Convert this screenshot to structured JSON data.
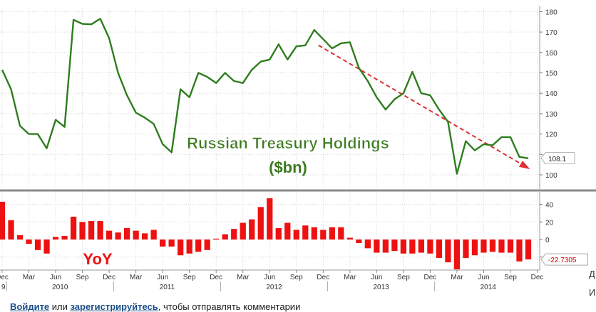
{
  "chart_data": [
    {
      "type": "line",
      "title": "Russian Treasury Holdings",
      "subtitle": "($bn)",
      "ylim": [
        95,
        182
      ],
      "yticks": [
        100,
        110,
        120,
        130,
        140,
        150,
        160,
        170,
        180
      ],
      "last_value_label": "108.1",
      "series": [
        {
          "values": [
            151.5,
            142,
            124,
            120,
            120,
            113,
            127,
            123.5,
            176,
            174,
            173.8,
            176.5,
            167,
            150,
            139,
            130.5,
            128,
            125,
            115,
            111,
            142,
            138,
            150,
            148,
            145,
            150,
            146,
            145,
            151.5,
            155.5,
            156.5,
            164,
            156.5,
            163,
            163.5,
            171,
            166.5,
            162,
            164.5,
            165,
            152.5,
            146,
            138,
            132,
            137,
            140,
            150.5,
            140,
            139,
            132,
            126,
            100.5,
            116.5,
            112,
            115,
            114.5,
            118.5,
            118.5,
            108.8,
            108.1
          ],
          "color": "#2e7d1e"
        }
      ],
      "trend_arrow_color": "#e03030"
    },
    {
      "type": "bar",
      "title": "YoY",
      "ylim": [
        -35,
        52
      ],
      "yticks": [
        -20,
        0,
        20,
        40
      ],
      "last_value_label": "-22.7305",
      "series": [
        {
          "values": [
            43,
            22,
            5,
            -5,
            -12,
            -16,
            3,
            4,
            26,
            20,
            21,
            21,
            10,
            8,
            13,
            10,
            7,
            11,
            -8,
            -8,
            -18,
            -16,
            -14,
            -12,
            1,
            6,
            12,
            19,
            23,
            37,
            47,
            13,
            19,
            11,
            16,
            14,
            11,
            14,
            14,
            2,
            -4,
            -10,
            -15,
            -15,
            -13,
            -16,
            -16,
            -15,
            -16,
            -21,
            -26,
            -34,
            -21,
            -18,
            -15,
            -14,
            -15,
            -15,
            -25,
            -22.7
          ],
          "color": "#ee1111"
        }
      ]
    }
  ],
  "x_axis": {
    "months": [
      "Dec",
      "Mar",
      "Jun",
      "Sep",
      "Dec",
      "Mar",
      "Jun",
      "Sep",
      "Dec",
      "Mar",
      "Jun",
      "Sep",
      "Dec",
      "Mar",
      "Jun",
      "Sep",
      "Dec",
      "Mar",
      "Jun",
      "Sep",
      "Dec"
    ],
    "years": [
      "2010",
      "2011",
      "2012",
      "2013",
      "2014"
    ],
    "edge_year_fragment": "9"
  },
  "footer": {
    "login_link": "Войдите",
    "or_text": " или ",
    "register_link": "зарегистрируйтесь",
    "rest_text": ", чтобы отправлять комментарии"
  },
  "side": {
    "letter_l": "Д",
    "letter_i": "И"
  }
}
